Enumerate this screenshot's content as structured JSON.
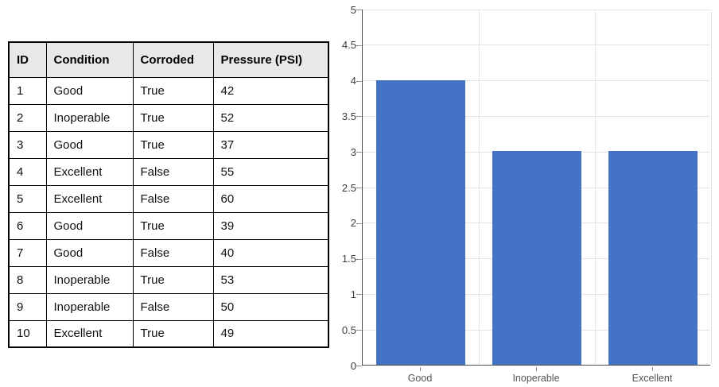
{
  "table": {
    "columns": [
      "ID",
      "Condition",
      "Corroded",
      "Pressure (PSI)"
    ],
    "rows": [
      [
        "1",
        "Good",
        "True",
        "42"
      ],
      [
        "2",
        "Inoperable",
        "True",
        "52"
      ],
      [
        "3",
        "Good",
        "True",
        "37"
      ],
      [
        "4",
        "Excellent",
        "False",
        "55"
      ],
      [
        "5",
        "Excellent",
        "False",
        "60"
      ],
      [
        "6",
        "Good",
        "True",
        "39"
      ],
      [
        "7",
        "Good",
        "False",
        "40"
      ],
      [
        "8",
        "Inoperable",
        "True",
        "53"
      ],
      [
        "9",
        "Inoperable",
        "False",
        "50"
      ],
      [
        "10",
        "Excellent",
        "True",
        "49"
      ]
    ]
  },
  "chart_data": {
    "type": "bar",
    "categories": [
      "Good",
      "Inoperable",
      "Excellent"
    ],
    "values": [
      4,
      3,
      3
    ],
    "title": "",
    "xlabel": "",
    "ylabel": "",
    "ylim": [
      0,
      5
    ],
    "yticks": [
      0,
      0.5,
      1,
      1.5,
      2,
      2.5,
      3,
      3.5,
      4,
      4.5,
      5
    ],
    "grid": true,
    "legend": false,
    "bar_color": "#4472C4",
    "bar_width_ratio": 0.765
  },
  "colors": {
    "gridline": "#e2e2e2",
    "axis": "#4d4d4d",
    "header_bg": "#e8e8e8",
    "table_border": "#000000"
  }
}
